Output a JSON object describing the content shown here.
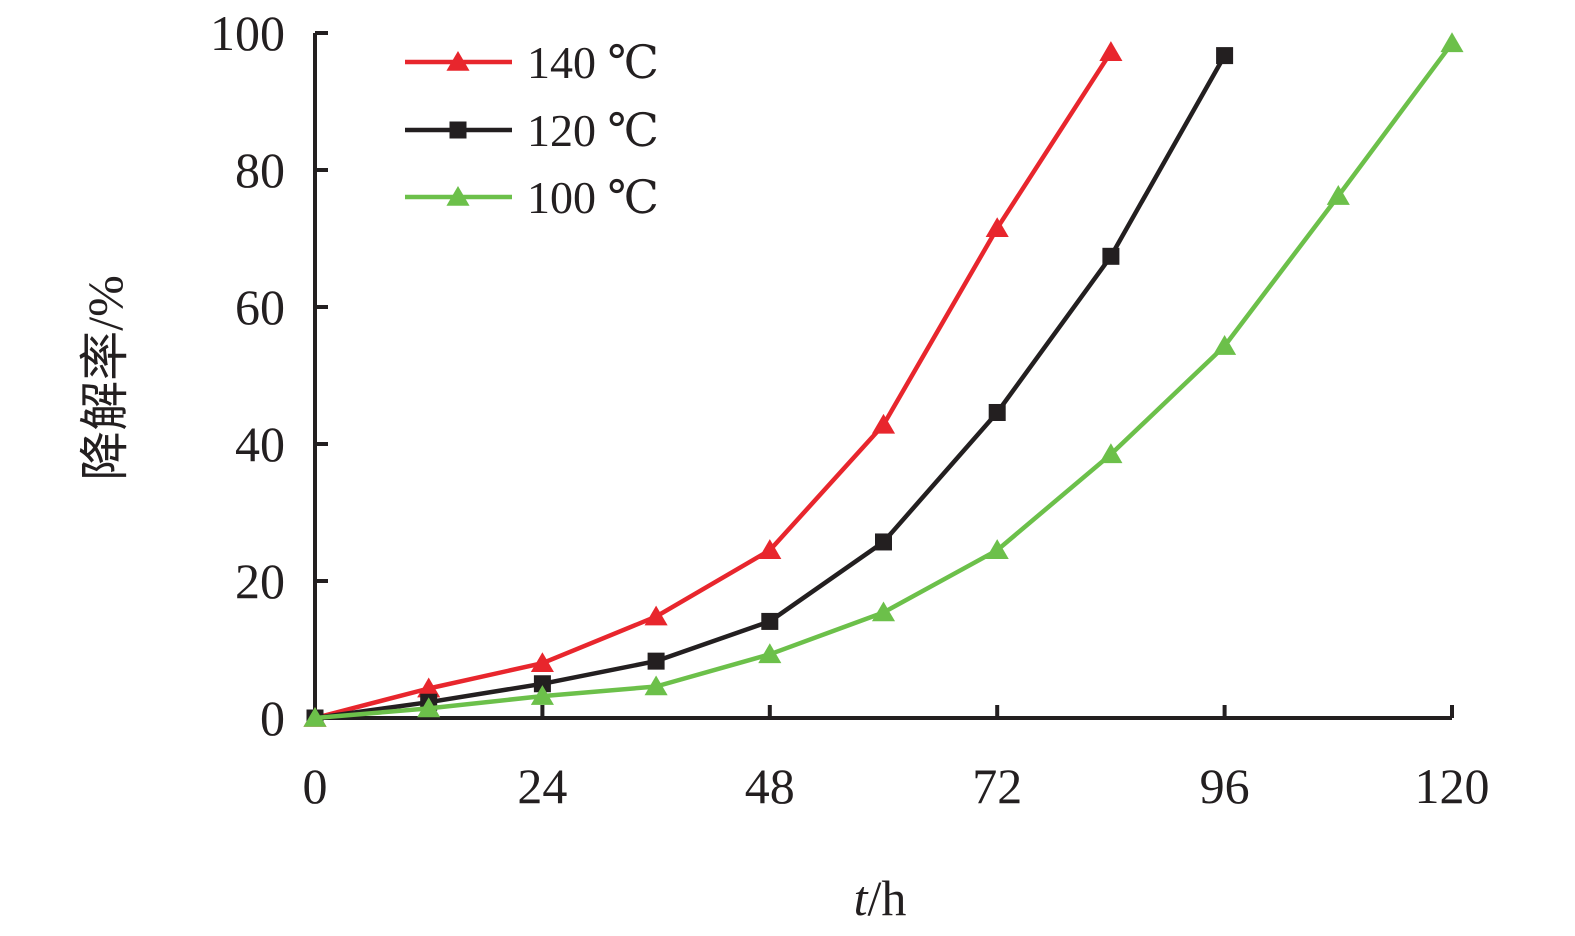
{
  "chart_data": {
    "type": "line",
    "xlabel_italic": "t",
    "xlabel_unit": "/h",
    "ylabel": "降解率/%",
    "xlim": [
      0,
      120
    ],
    "ylim": [
      0,
      100
    ],
    "xticks": [
      "0",
      "24",
      "48",
      "72",
      "96",
      "120"
    ],
    "yticks": [
      "0",
      "20",
      "40",
      "60",
      "80",
      "100"
    ],
    "legend_position": "top-left",
    "grid": false,
    "series": [
      {
        "name": "140 ℃",
        "color": "#e8262d",
        "marker": "triangle",
        "points": [
          [
            0,
            0
          ],
          [
            12,
            4.3
          ],
          [
            24,
            8.0
          ],
          [
            36,
            14.8
          ],
          [
            48,
            24.5
          ],
          [
            60,
            42.8
          ],
          [
            72,
            71.5
          ],
          [
            84,
            97.2
          ]
        ]
      },
      {
        "name": "120 ℃",
        "color": "#231f20",
        "marker": "square",
        "points": [
          [
            0,
            0
          ],
          [
            12,
            2.3
          ],
          [
            24,
            5.0
          ],
          [
            36,
            8.3
          ],
          [
            48,
            14.1
          ],
          [
            60,
            25.7
          ],
          [
            72,
            44.6
          ],
          [
            84,
            67.4
          ],
          [
            96,
            96.7
          ]
        ]
      },
      {
        "name": "100 ℃",
        "color": "#6cc04a",
        "marker": "triangle",
        "points": [
          [
            0,
            0
          ],
          [
            12,
            1.4
          ],
          [
            24,
            3.2
          ],
          [
            36,
            4.6
          ],
          [
            48,
            9.3
          ],
          [
            60,
            15.4
          ],
          [
            72,
            24.5
          ],
          [
            84,
            38.5
          ],
          [
            96,
            54.3
          ],
          [
            108,
            76.2
          ],
          [
            120,
            98.5
          ]
        ]
      }
    ]
  }
}
